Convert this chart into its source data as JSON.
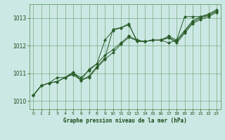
{
  "xlabel": "Graphe pression niveau de la mer (hPa)",
  "background_color": "#cce8e4",
  "plot_bg_color": "#cce8e4",
  "grid_color": "#4a8a4a",
  "line_color": "#2a5e2a",
  "text_color": "#1a4a1a",
  "xlim": [
    -0.5,
    23.5
  ],
  "ylim": [
    1009.7,
    1013.5
  ],
  "xticks": [
    0,
    1,
    2,
    3,
    4,
    5,
    6,
    7,
    8,
    9,
    10,
    11,
    12,
    13,
    14,
    15,
    16,
    17,
    18,
    19,
    20,
    21,
    22,
    23
  ],
  "yticks": [
    1010,
    1011,
    1012,
    1013
  ],
  "hours": [
    0,
    1,
    2,
    3,
    4,
    5,
    6,
    7,
    8,
    9,
    10,
    11,
    12,
    13,
    14,
    15,
    16,
    17,
    18,
    19,
    20,
    21,
    22,
    23
  ],
  "line1": [
    1010.2,
    1010.55,
    1010.65,
    1010.7,
    1010.85,
    1010.95,
    1010.75,
    1010.9,
    1011.25,
    1011.55,
    1012.6,
    1012.65,
    1012.75,
    1012.2,
    1012.15,
    1012.2,
    1012.2,
    1012.35,
    1012.2,
    1012.55,
    1012.9,
    1013.05,
    1013.1,
    1013.25
  ],
  "line2": [
    1010.2,
    1010.55,
    1010.65,
    1010.85,
    1010.85,
    1011.0,
    1010.85,
    1011.1,
    1011.35,
    1011.65,
    1011.85,
    1012.1,
    1012.35,
    1012.2,
    1012.15,
    1012.2,
    1012.2,
    1012.3,
    1012.15,
    1012.5,
    1012.85,
    1013.0,
    1013.1,
    1013.25
  ],
  "line3": [
    1010.2,
    1010.55,
    1010.65,
    1010.7,
    1010.85,
    1011.0,
    1010.75,
    1010.85,
    1011.2,
    1011.5,
    1011.75,
    1012.05,
    1012.3,
    1012.18,
    1012.15,
    1012.2,
    1012.2,
    1012.28,
    1012.1,
    1012.45,
    1012.8,
    1012.95,
    1013.05,
    1013.2
  ],
  "line_main": [
    1010.2,
    1010.55,
    1010.65,
    1010.7,
    1010.85,
    1011.05,
    1010.75,
    1011.15,
    1011.35,
    1012.2,
    1012.55,
    1012.65,
    1012.8,
    1012.15,
    1012.15,
    1012.2,
    1012.2,
    1012.1,
    1012.2,
    1013.05,
    1013.05,
    1013.05,
    1013.15,
    1013.3
  ]
}
